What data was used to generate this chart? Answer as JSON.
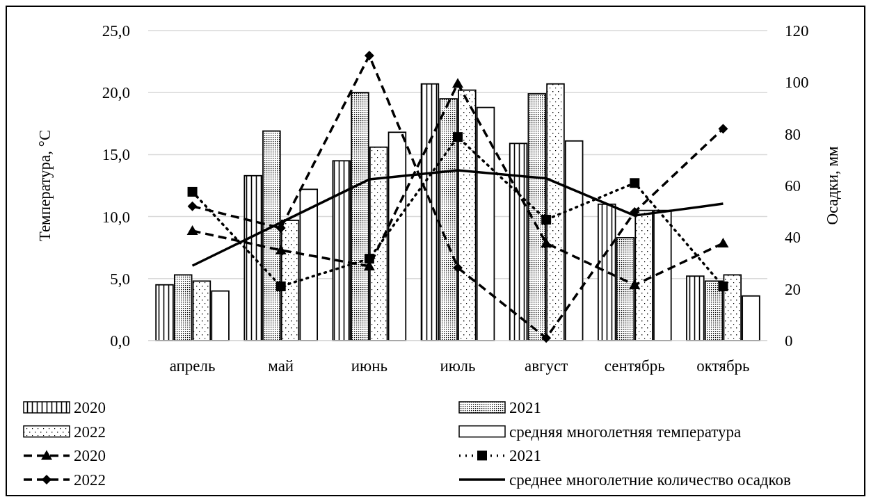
{
  "chart_data": {
    "type": "bar",
    "xlabel": null,
    "ylabel": "Температура, °С",
    "y2label": "Осадки, мм",
    "categories": [
      "апрель",
      "май",
      "июнь",
      "июль",
      "август",
      "сентябрь",
      "октябрь"
    ],
    "series": [
      {
        "name": "2020",
        "type": "bar",
        "color": "#000000",
        "values": [
          4.5,
          13.3,
          14.5,
          20.7,
          15.9,
          11.0,
          5.2
        ]
      },
      {
        "name": "2021",
        "type": "bar",
        "color": "#000000",
        "values": [
          5.3,
          16.9,
          20.0,
          19.5,
          19.9,
          8.3,
          4.8
        ]
      },
      {
        "name": "2022",
        "type": "bar",
        "color": "#000000",
        "values": [
          4.8,
          9.7,
          15.6,
          20.2,
          20.7,
          10.5,
          5.3
        ]
      },
      {
        "name": "средняя многолетняя температура",
        "type": "bar",
        "color": "#000000",
        "values": [
          4.0,
          12.2,
          16.8,
          18.8,
          16.1,
          10.5,
          3.6
        ]
      },
      {
        "name": "2020",
        "type": "line",
        "axis": "y2",
        "color": "#000000",
        "line_style": "dashed",
        "marker": "triangle",
        "values": [
          42.5,
          35,
          28.8,
          99.5,
          37.7,
          21.5,
          37.7
        ]
      },
      {
        "name": "2021",
        "type": "line",
        "axis": "y2",
        "color": "#000000",
        "line_style": "dotted",
        "marker": "square",
        "values": [
          57.6,
          21,
          31.7,
          78.8,
          46.8,
          61,
          21
        ]
      },
      {
        "name": "2022",
        "type": "line",
        "axis": "y2",
        "color": "#000000",
        "line_style": "dashed",
        "marker": "diamond",
        "values": [
          52,
          43.6,
          110.3,
          28.2,
          1,
          49.8,
          82
        ]
      },
      {
        "name": "среднее многолетние количество осадков",
        "type": "line",
        "axis": "y2",
        "color": "#000000",
        "line_style": "solid",
        "marker": "none",
        "values": [
          29,
          45.7,
          62.4,
          65.9,
          62.8,
          48.4,
          53
        ]
      }
    ],
    "ylim": [
      0,
      25
    ],
    "yticks": [
      {
        "value": 0,
        "label": "0,0"
      },
      {
        "value": 5,
        "label": "5,0"
      },
      {
        "value": 10,
        "label": "10,0"
      },
      {
        "value": 15,
        "label": "15,0"
      },
      {
        "value": 20,
        "label": "20,0"
      },
      {
        "value": 25,
        "label": "25,0"
      }
    ],
    "y2lim": [
      0,
      120
    ],
    "y2ticks": [
      0,
      20,
      40,
      60,
      80,
      100,
      120
    ],
    "grid": "y",
    "legend": "bottom"
  }
}
